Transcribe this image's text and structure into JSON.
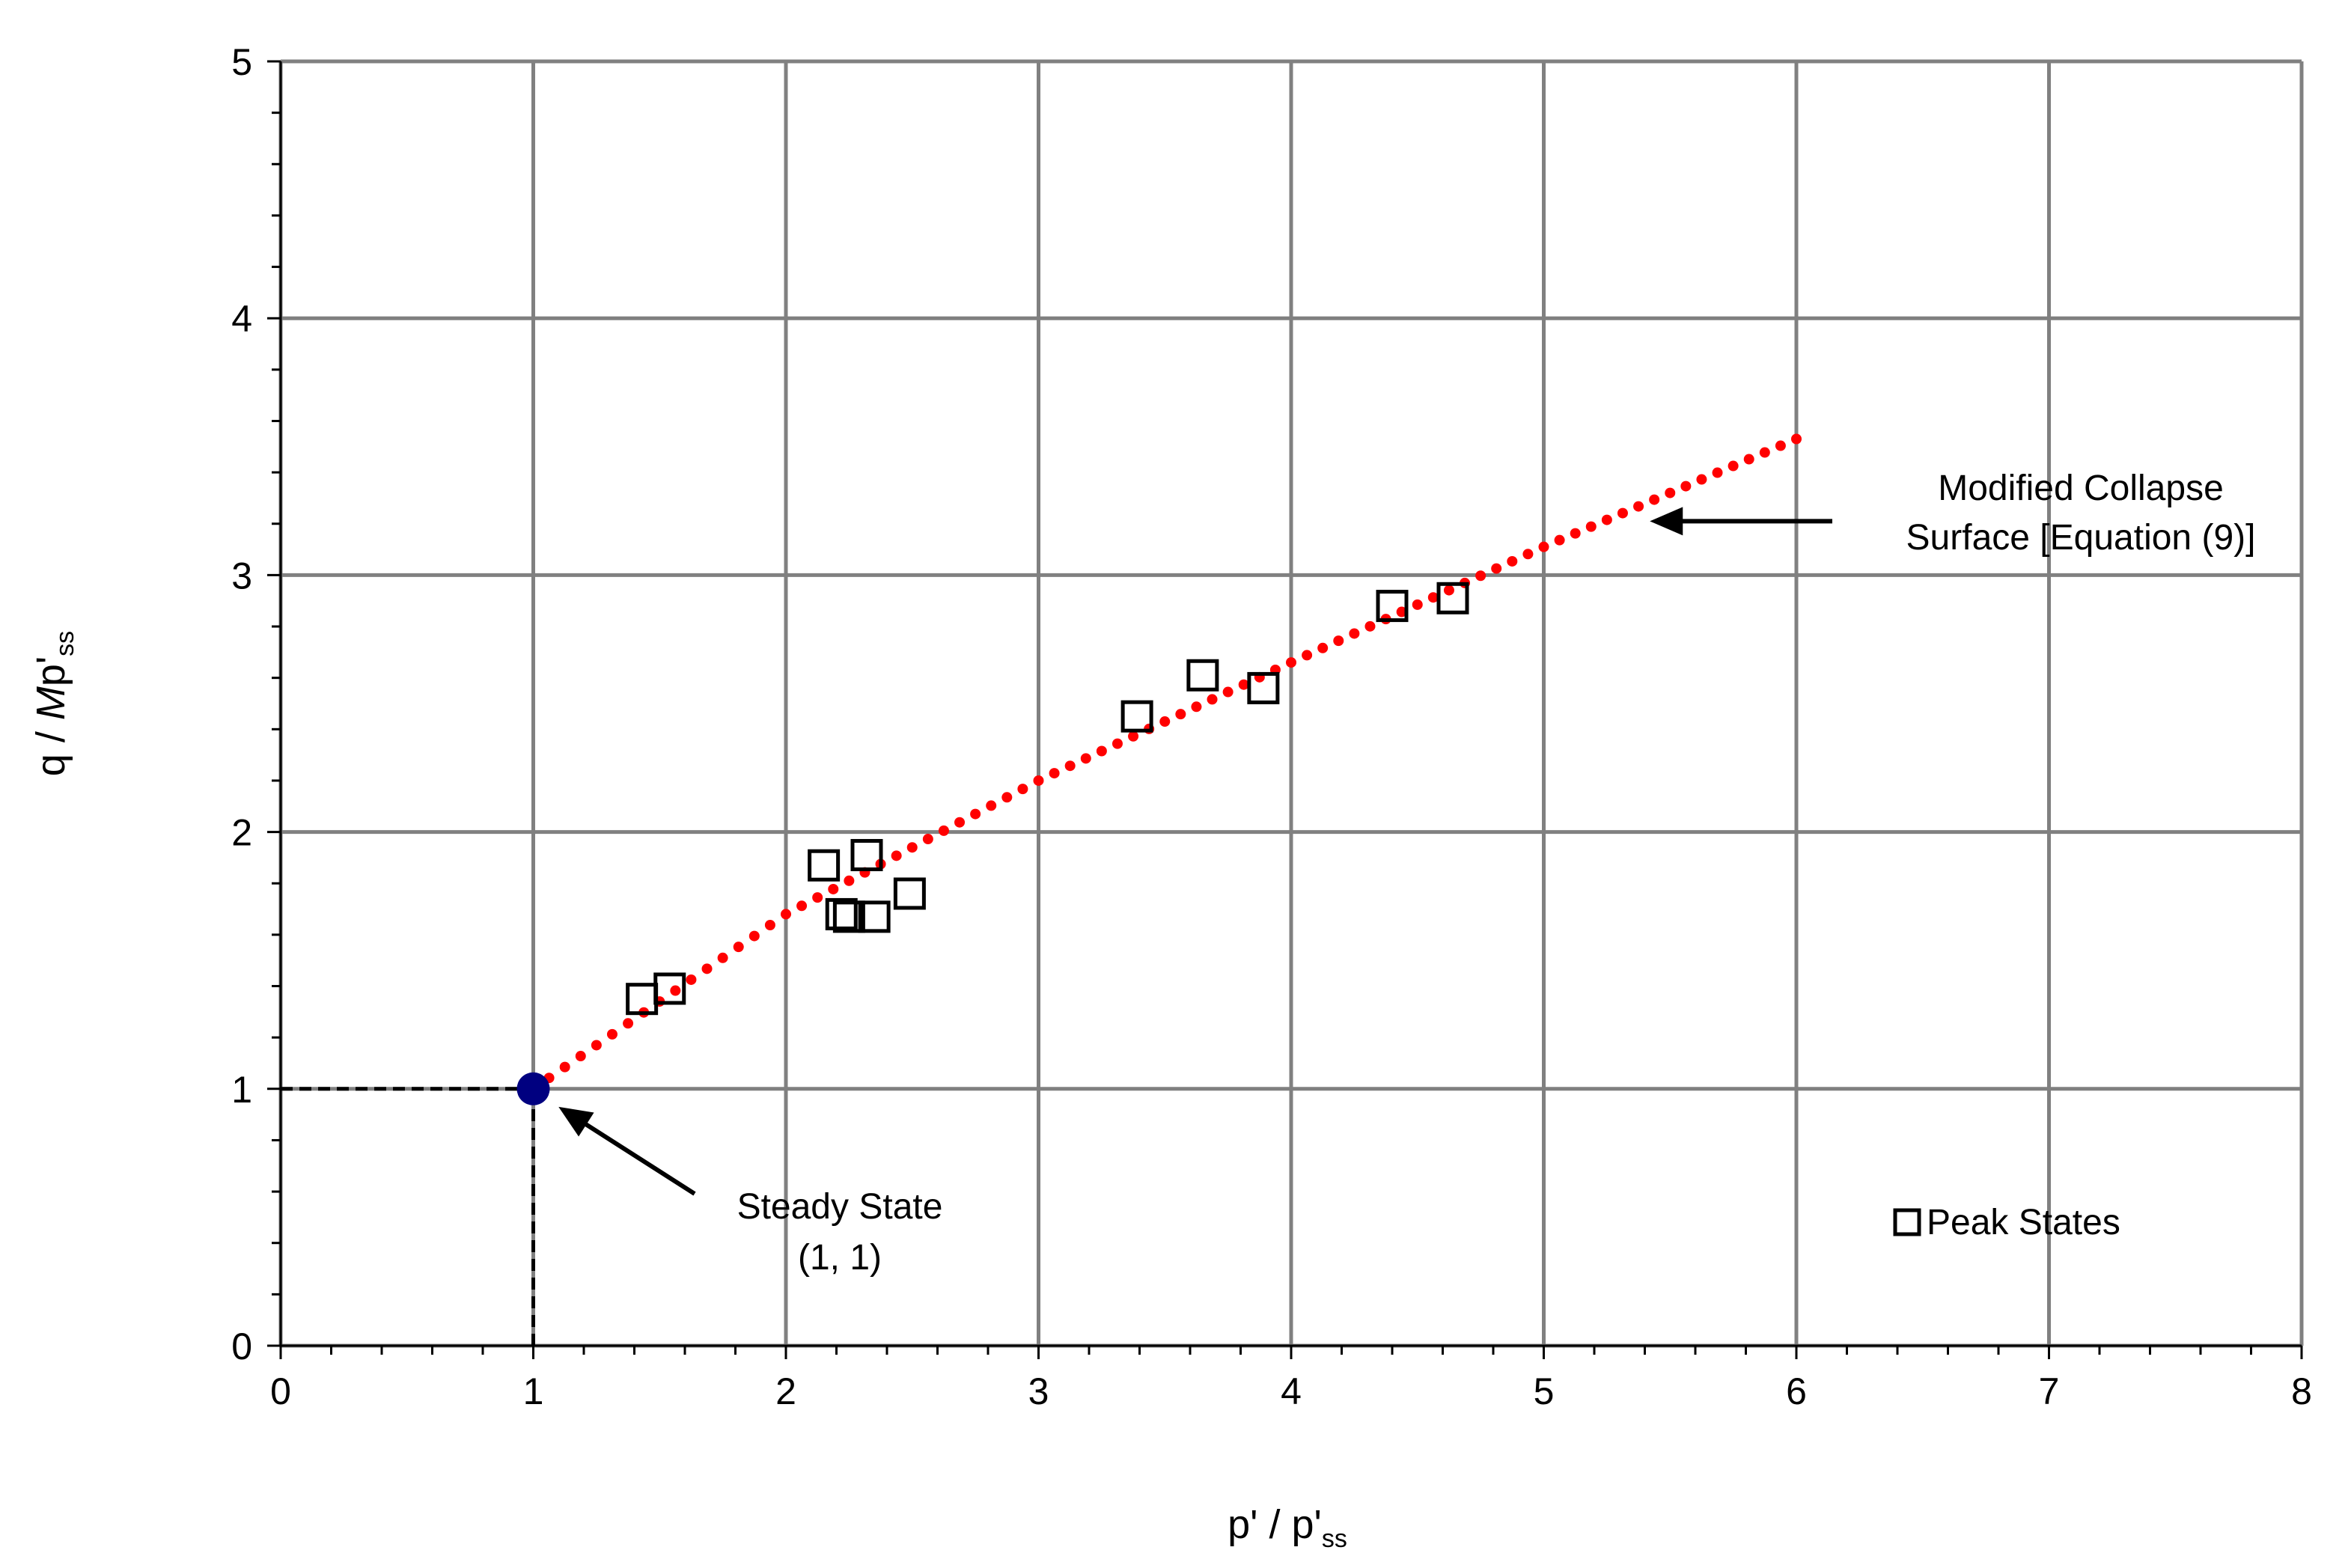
{
  "chart_data": {
    "type": "scatter",
    "title": "",
    "xlabel": {
      "main": "p' / p'",
      "sub": "ss"
    },
    "ylabel": {
      "pre": "q / ",
      "italic": "M",
      "main": "p'",
      "sub": "ss"
    },
    "xlim": [
      0,
      8
    ],
    "ylim": [
      0,
      5
    ],
    "xticks": [
      0,
      1,
      2,
      3,
      4,
      5,
      6,
      7,
      8
    ],
    "yticks": [
      0,
      1,
      2,
      3,
      4,
      5
    ],
    "xtick_labels": [
      "0",
      "1",
      "2",
      "3",
      "4",
      "5",
      "6",
      "7",
      "8"
    ],
    "ytick_labels": [
      "0",
      "1",
      "2",
      "3",
      "4",
      "5"
    ],
    "x_minor_step": 0.2,
    "y_minor_step": 0.2,
    "grid": true,
    "series": [
      {
        "name": "Peak States",
        "marker": "square-open",
        "color": "#000000",
        "points": [
          {
            "x": 1.43,
            "y": 1.35
          },
          {
            "x": 1.54,
            "y": 1.39
          },
          {
            "x": 2.15,
            "y": 1.87
          },
          {
            "x": 2.32,
            "y": 1.91
          },
          {
            "x": 2.22,
            "y": 1.68
          },
          {
            "x": 2.25,
            "y": 1.67
          },
          {
            "x": 2.35,
            "y": 1.67
          },
          {
            "x": 2.49,
            "y": 1.76
          },
          {
            "x": 3.39,
            "y": 2.45
          },
          {
            "x": 3.65,
            "y": 2.61
          },
          {
            "x": 3.89,
            "y": 2.56
          },
          {
            "x": 4.4,
            "y": 2.88
          },
          {
            "x": 4.64,
            "y": 2.91
          }
        ]
      },
      {
        "name": "Modified Collapse Surface [Equation (9)]",
        "line": "dotted",
        "color": "#ff0000",
        "points": [
          {
            "x": 1.0,
            "y": 1.0
          },
          {
            "x": 2.0,
            "y": 1.68
          },
          {
            "x": 3.0,
            "y": 2.2
          },
          {
            "x": 4.0,
            "y": 2.66
          },
          {
            "x": 5.0,
            "y": 3.11
          },
          {
            "x": 6.0,
            "y": 3.53
          }
        ]
      },
      {
        "name": "Steady State",
        "marker": "circle-filled",
        "color": "#000080",
        "points": [
          {
            "x": 1,
            "y": 1
          }
        ]
      }
    ],
    "reference_lines": [
      {
        "from": {
          "x": 0,
          "y": 1
        },
        "to": {
          "x": 1,
          "y": 1
        },
        "style": "dashed"
      },
      {
        "from": {
          "x": 1,
          "y": 0
        },
        "to": {
          "x": 1,
          "y": 1
        },
        "style": "dashed"
      }
    ],
    "annotations": [
      {
        "name": "collapse-surface",
        "lines": [
          "Modified Collapse",
          "Surface [Equation (9)]"
        ],
        "arrow_to": {
          "x": 5.42,
          "y": 3.21
        }
      },
      {
        "name": "steady-state",
        "lines": [
          "Steady State",
          "(1, 1)"
        ],
        "arrow_to": {
          "x": 1.1,
          "y": 0.93
        }
      }
    ],
    "legend": {
      "label": "Peak States",
      "position": "bottom-right"
    }
  }
}
